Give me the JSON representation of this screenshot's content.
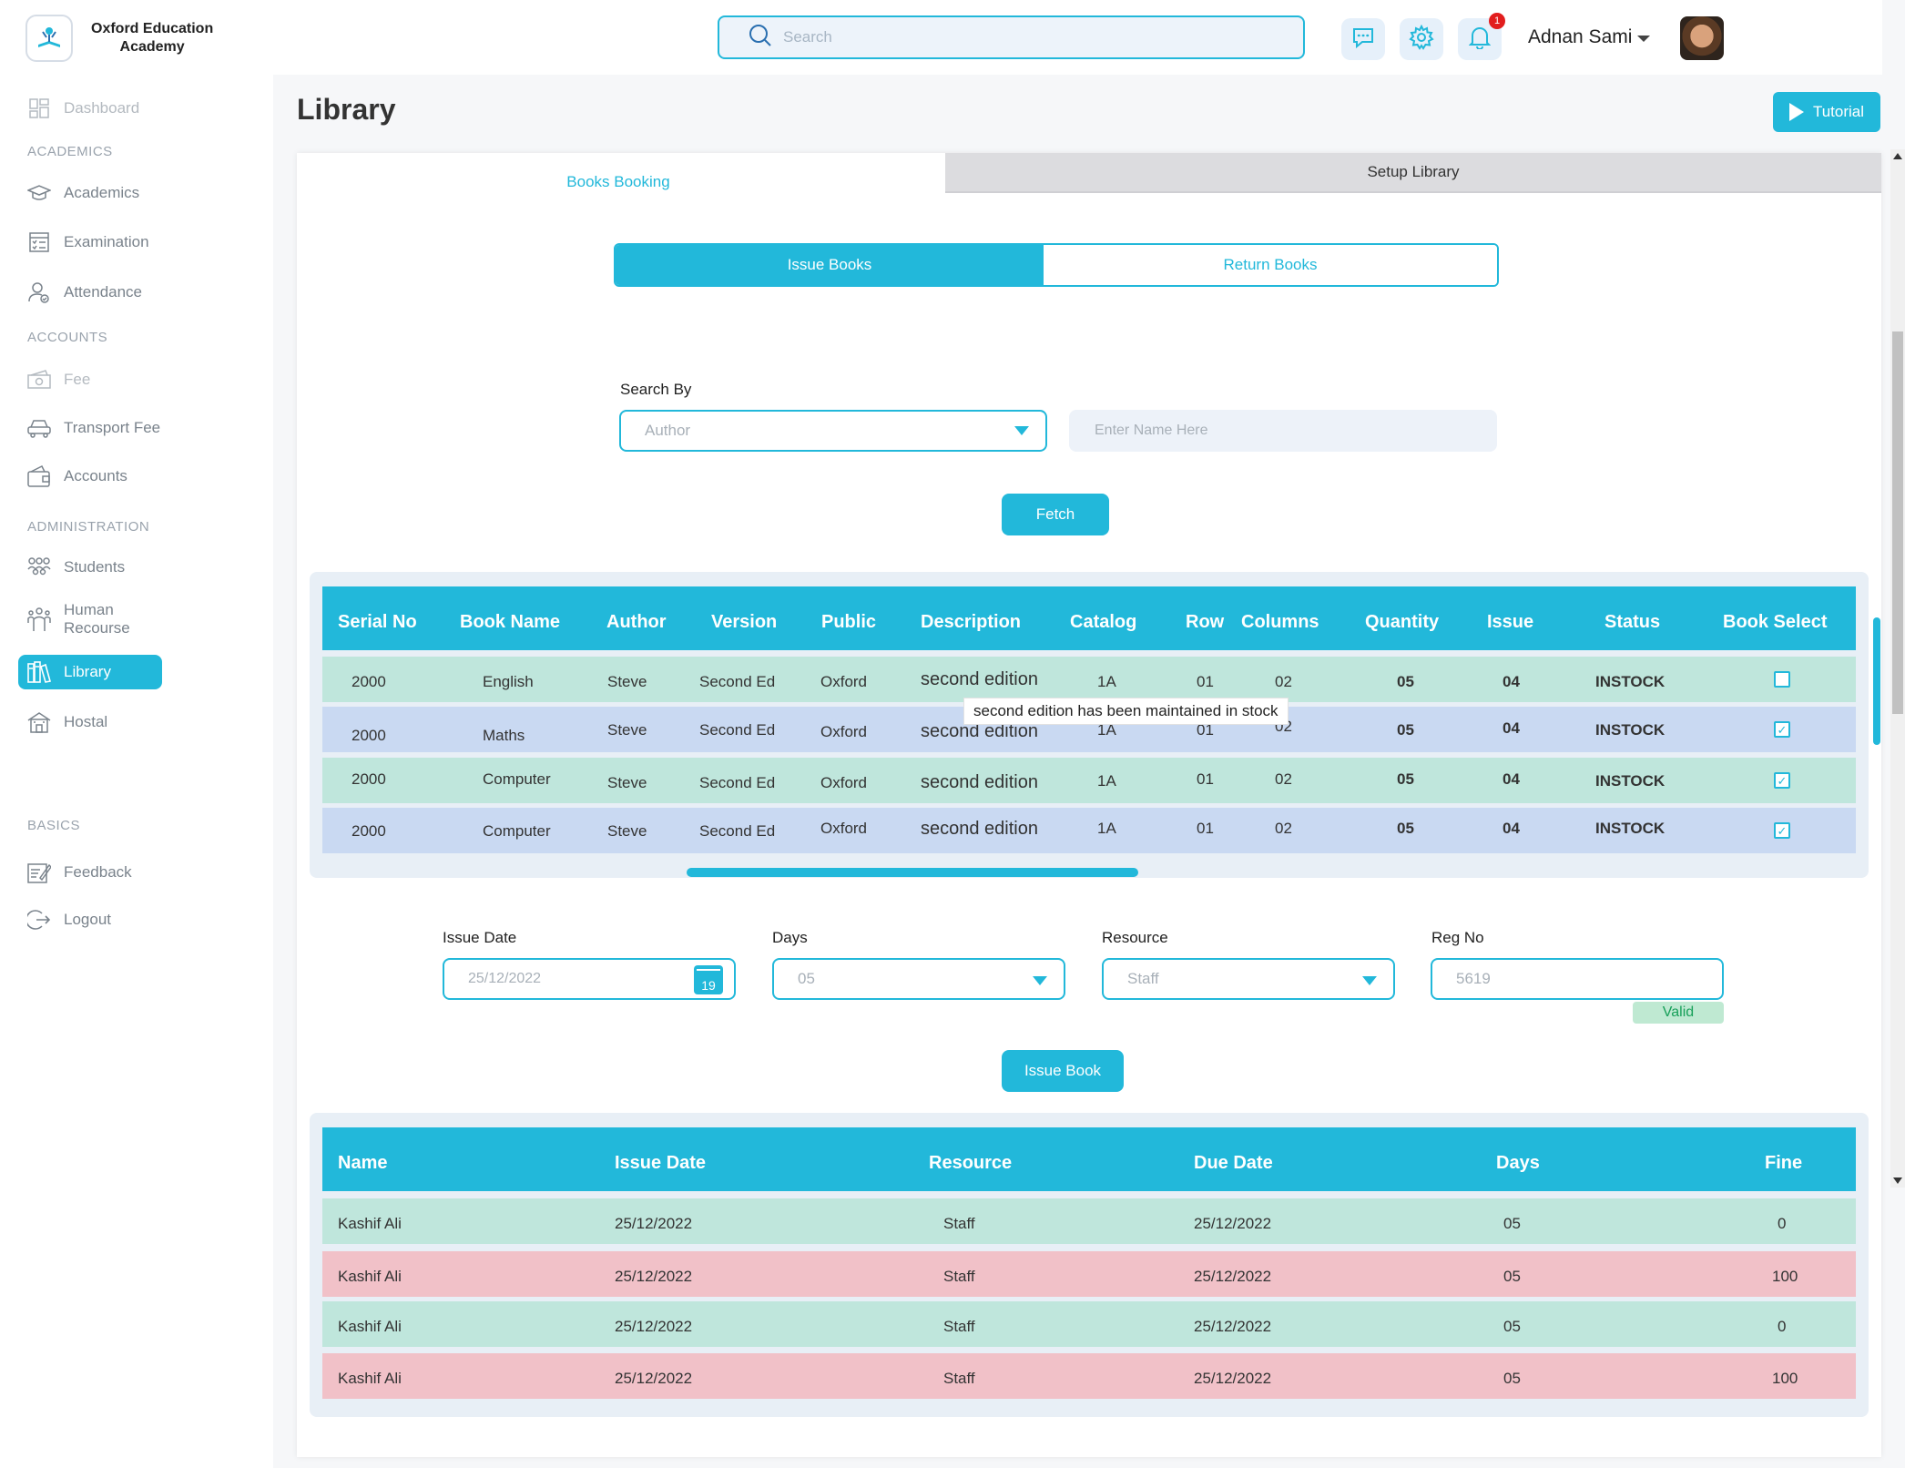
{
  "brand": {
    "name_line1": "Oxford Education",
    "name_line2": "Academy"
  },
  "sidebar": {
    "dashboard": "Dashboard",
    "sections": {
      "academics": "ACADEMICS",
      "accounts": "ACCOUNTS",
      "administration": "ADMINISTRATION",
      "basics": "BASICS"
    },
    "academics": "Academics",
    "examination": "Examination",
    "attendance": "Attendance",
    "fee": "Fee",
    "transport_fee": "Transport Fee",
    "accounts": "Accounts",
    "students": "Students",
    "human_resource": "Human Recourse",
    "library": "Library",
    "hostal": "Hostal",
    "feedback": "Feedback",
    "logout": "Logout"
  },
  "header": {
    "search_placeholder": "Search",
    "notification_count": "1",
    "user_name": "Adnan Sami"
  },
  "page": {
    "title": "Library",
    "tutorial": "Tutorial"
  },
  "tabs": {
    "books_booking": "Books Booking",
    "setup_library": "Setup Library"
  },
  "segment": {
    "issue": "Issue Books",
    "return": "Return Books"
  },
  "search_by": {
    "label": "Search By",
    "selected": "Author",
    "name_placeholder": "Enter Name  Here",
    "fetch": "Fetch"
  },
  "books_table": {
    "headers": [
      "Serial No",
      "Book Name",
      "Author",
      "Version",
      "Public",
      "Description",
      "Catalog",
      "Row",
      "Columns",
      "Quantity",
      "Issue",
      "Status",
      "Book Select"
    ],
    "rows": [
      {
        "serial": "2000",
        "book": "English",
        "author": "Steve",
        "version": "Second Ed",
        "public": "Oxford",
        "description": "second edition",
        "catalog": "1A",
        "row": "01",
        "columns": "02",
        "quantity": "05",
        "issue": "04",
        "status": "INSTOCK",
        "selected": false
      },
      {
        "serial": "2000",
        "book": "Maths",
        "author": "Steve",
        "version": "Second Ed",
        "public": "Oxford",
        "description": "second edition",
        "catalog": "1A",
        "row": "01",
        "columns": "02",
        "quantity": "05",
        "issue": "04",
        "status": "INSTOCK",
        "selected": true
      },
      {
        "serial": "2000",
        "book": "Computer",
        "author": "Steve",
        "version": "Second Ed",
        "public": "Oxford",
        "description": "second edition",
        "catalog": "1A",
        "row": "01",
        "columns": "02",
        "quantity": "05",
        "issue": "04",
        "status": "INSTOCK",
        "selected": true
      },
      {
        "serial": "2000",
        "book": "Computer",
        "author": "Steve",
        "version": "Second Ed",
        "public": "Oxford",
        "description": "second edition",
        "catalog": "1A",
        "row": "01",
        "columns": "02",
        "quantity": "05",
        "issue": "04",
        "status": "INSTOCK",
        "selected": true
      }
    ],
    "tooltip": "second edition has been maintained in stock"
  },
  "issue_form": {
    "issue_date_label": "Issue Date",
    "issue_date": "25/12/2022",
    "calendar_day": "19",
    "days_label": "Days",
    "days": "05",
    "resource_label": "Resource",
    "resource": "Staff",
    "reg_label": "Reg No",
    "reg_no": "5619",
    "valid": "Valid",
    "issue_button": "Issue Book"
  },
  "issued_table": {
    "headers": [
      "Name",
      "Issue Date",
      "Resource",
      "Due Date",
      "Days",
      "Fine"
    ],
    "rows": [
      {
        "name": "Kashif Ali",
        "issue_date": "25/12/2022",
        "resource": "Staff",
        "due_date": "25/12/2022",
        "days": "05",
        "fine": "0"
      },
      {
        "name": "Kashif Ali",
        "issue_date": "25/12/2022",
        "resource": "Staff",
        "due_date": "25/12/2022",
        "days": "05",
        "fine": "100"
      },
      {
        "name": "Kashif Ali",
        "issue_date": "25/12/2022",
        "resource": "Staff",
        "due_date": "25/12/2022",
        "days": "05",
        "fine": "0"
      },
      {
        "name": "Kashif Ali",
        "issue_date": "25/12/2022",
        "resource": "Staff",
        "due_date": "25/12/2022",
        "days": "05",
        "fine": "100"
      }
    ]
  },
  "colors": {
    "accent": "#22b8da",
    "row_green": "#bfe6dc",
    "row_blue": "#c9d9f2",
    "row_pink": "#f1c1c8",
    "badge": "#e21d1d"
  }
}
